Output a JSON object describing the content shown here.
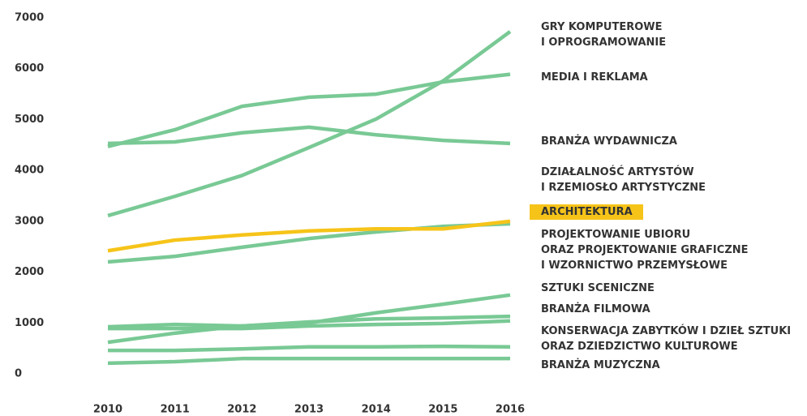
{
  "chart_data": {
    "type": "line",
    "x": [
      2010,
      2011,
      2012,
      2013,
      2014,
      2015,
      2016
    ],
    "xlim": [
      2010,
      2016
    ],
    "ylim": [
      0,
      7000
    ],
    "yticks": [
      0,
      1000,
      2000,
      3000,
      4000,
      5000,
      6000,
      7000
    ],
    "series": [
      {
        "name": "GRY KOMPUTEROWE\nI OPROGRAMOWANIE",
        "color": "#79c995",
        "values": [
          3110,
          3490,
          3900,
          4450,
          5010,
          5760,
          6730
        ]
      },
      {
        "name": "MEDIA I REKLAMA",
        "color": "#79c995",
        "values": [
          4470,
          4800,
          5260,
          5440,
          5500,
          5740,
          5890
        ]
      },
      {
        "name": "BRANŻA WYDAWNICZA",
        "color": "#79c995",
        "values": [
          4530,
          4560,
          4740,
          4850,
          4700,
          4590,
          4530
        ]
      },
      {
        "name": "DZIAŁALNOŚĆ ARTYSTÓW\nI RZEMIOSŁO ARTYSTYCZNE",
        "color": "#79c995",
        "values": [
          2200,
          2310,
          2490,
          2660,
          2790,
          2900,
          2950
        ]
      },
      {
        "name": "ARCHITEKTURA",
        "color": "#f6c419",
        "values": [
          2420,
          2630,
          2730,
          2810,
          2850,
          2850,
          3000
        ]
      },
      {
        "name": "PROJEKTOWANIE UBIORU\nORAZ PROJEKTOWANIE GRAFICZNE\nI WZORNICTWO PRZEMYSŁOWE",
        "color": "#79c995",
        "values": [
          620,
          800,
          940,
          1000,
          1200,
          1370,
          1550
        ]
      },
      {
        "name": "SZTUKI SCENICZNE",
        "color": "#79c995",
        "values": [
          925,
          970,
          940,
          1020,
          1080,
          1100,
          1130
        ]
      },
      {
        "name": "BRANŻA FILMOWA",
        "color": "#79c995",
        "values": [
          890,
          890,
          890,
          940,
          970,
          990,
          1040
        ]
      },
      {
        "name": "KONSERWACJA ZABYTKÓW I DZIEŁ SZTUKI\nORAZ DZIEDZICTWO KULTUROWE",
        "color": "#79c995",
        "values": [
          460,
          460,
          490,
          530,
          530,
          540,
          530
        ]
      },
      {
        "name": "BRANŻA MUZYCZNA",
        "color": "#79c995",
        "values": [
          210,
          240,
          300,
          300,
          300,
          300,
          300
        ]
      }
    ]
  }
}
